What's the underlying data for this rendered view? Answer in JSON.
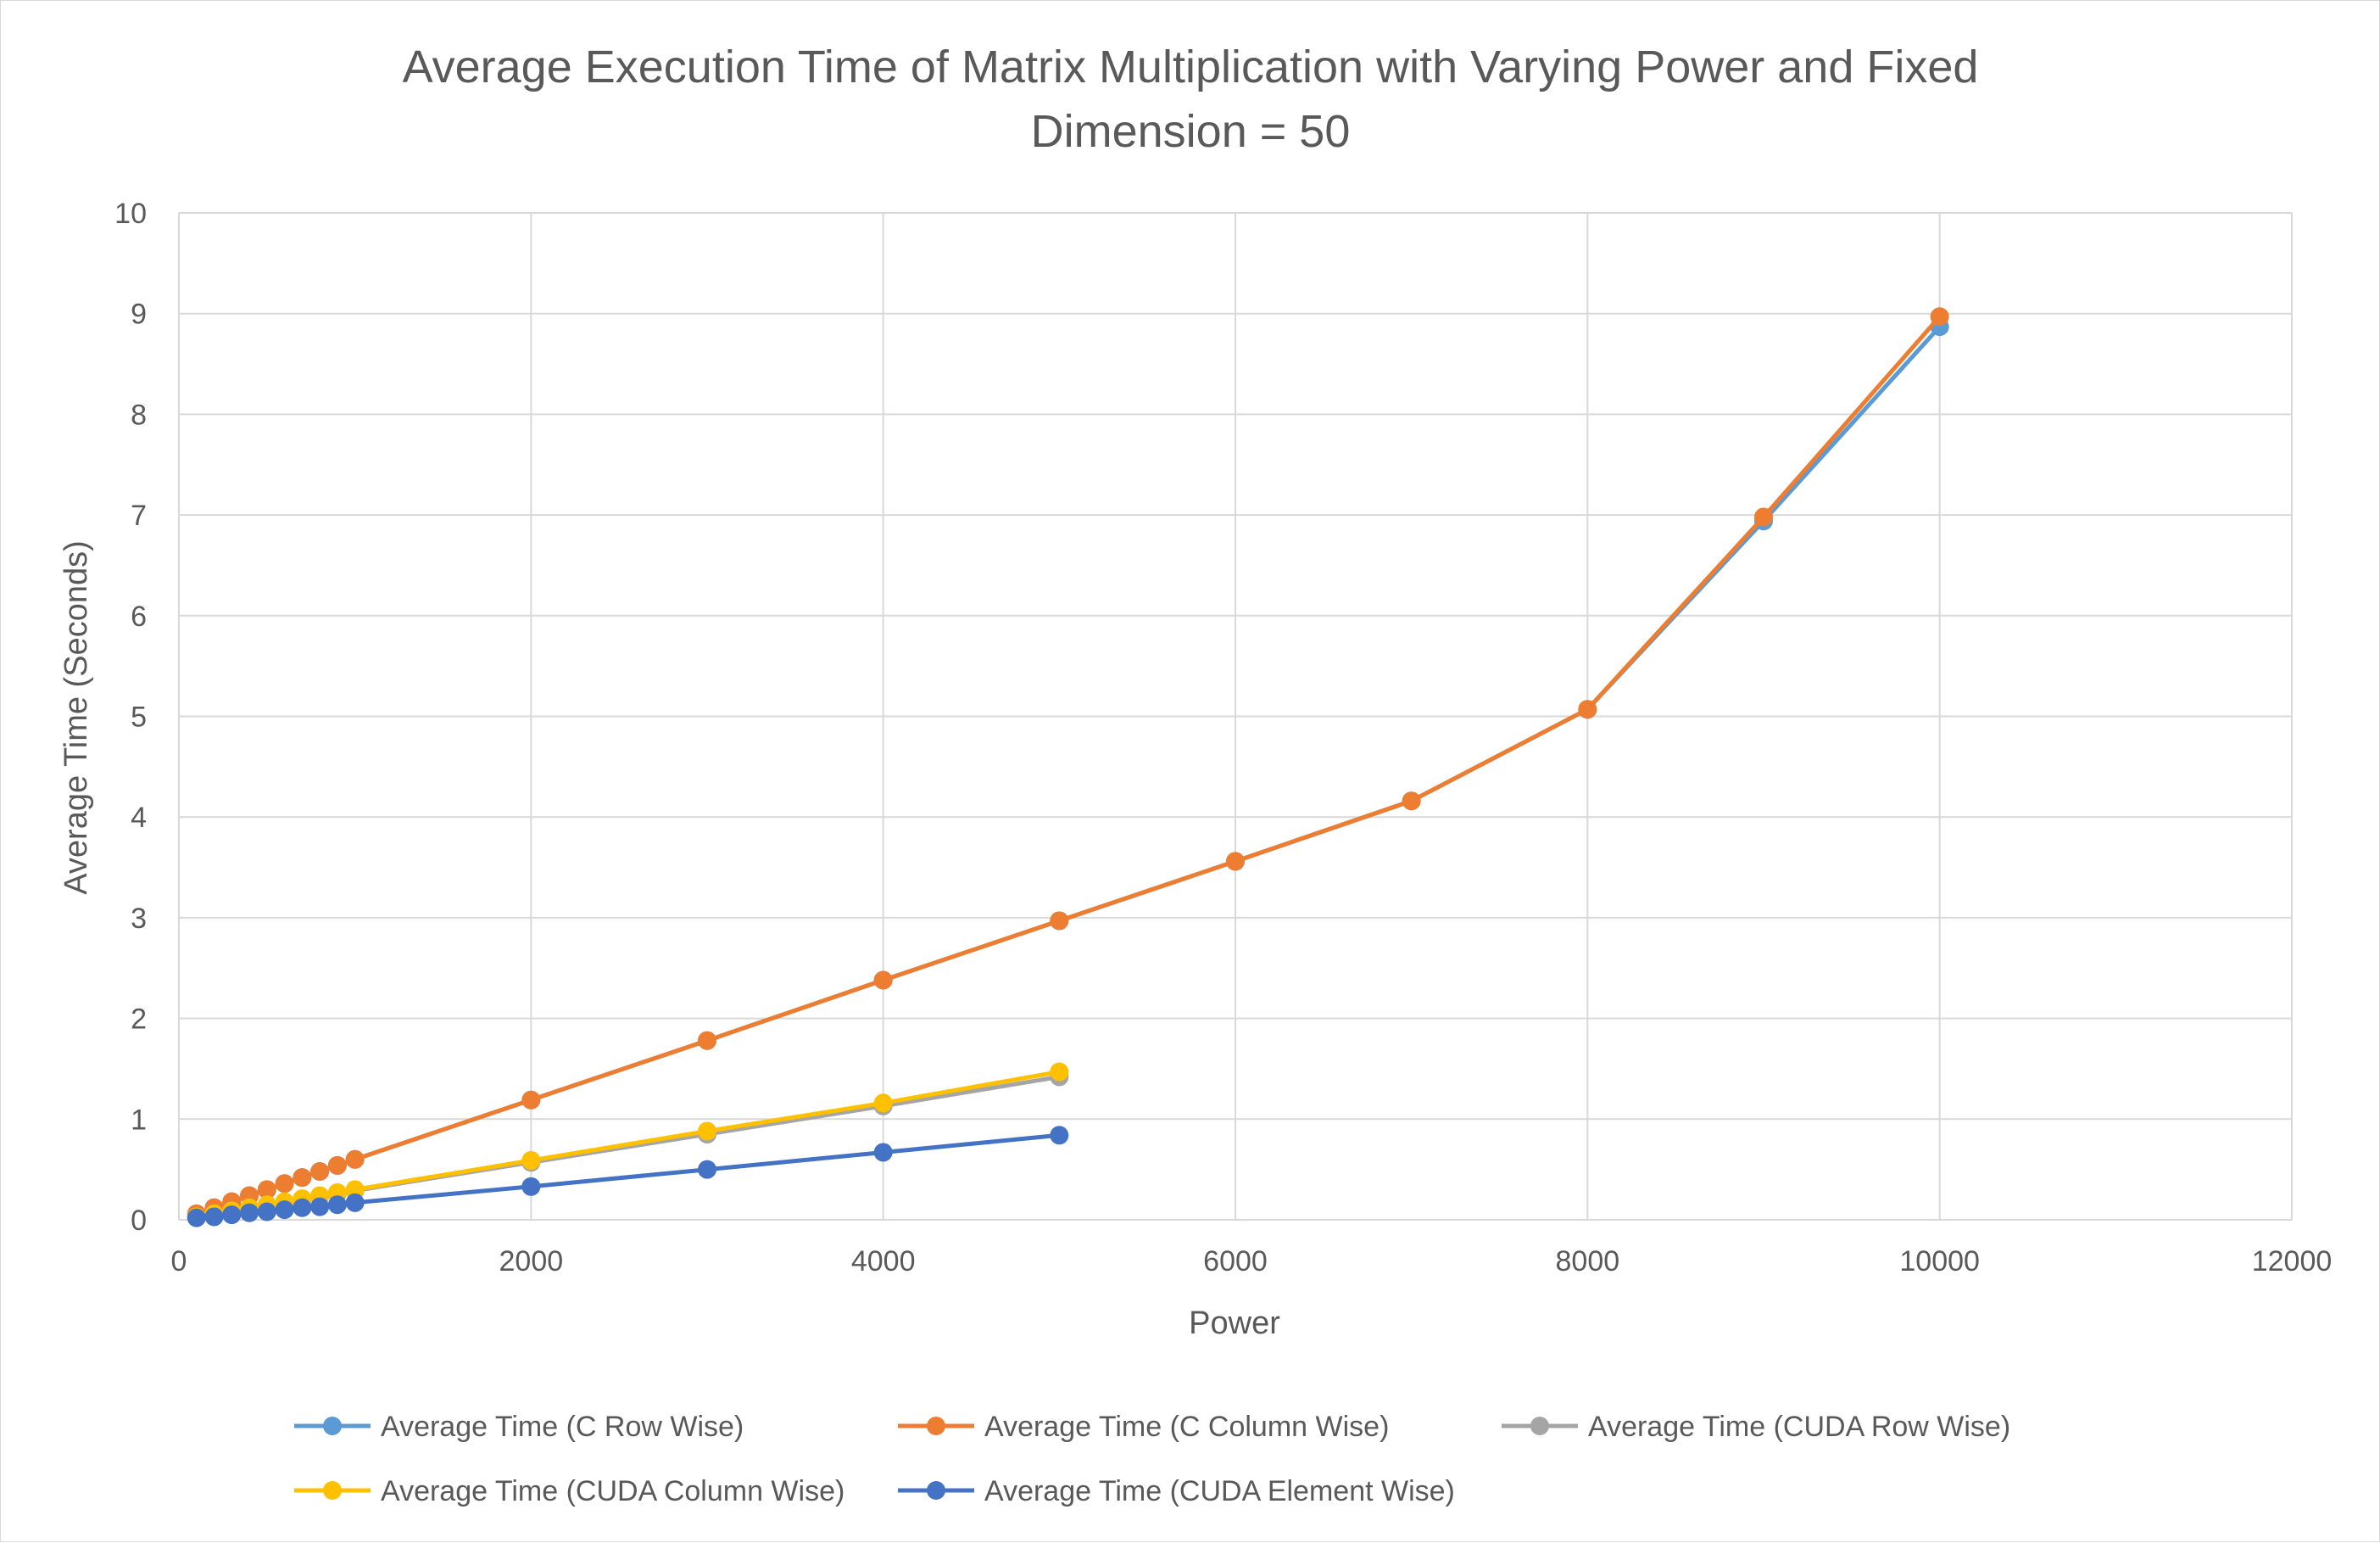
{
  "chart_data": {
    "type": "line",
    "title_lines": [
      "Average Execution Time of Matrix Multiplication with Varying Power and Fixed",
      "Dimension = 50"
    ],
    "xlabel": "Power",
    "ylabel": "Average Time (Seconds)",
    "xlim": [
      0,
      12000
    ],
    "ylim": [
      0,
      10
    ],
    "xticks": [
      0,
      2000,
      4000,
      6000,
      8000,
      10000,
      12000
    ],
    "yticks": [
      0,
      1,
      2,
      3,
      4,
      5,
      6,
      7,
      8,
      9,
      10
    ],
    "grid": true,
    "legend_position": "bottom",
    "series": [
      {
        "name": "Average Time (C Row Wise)",
        "color": "#5B9BD5",
        "x": [
          100,
          200,
          300,
          400,
          500,
          600,
          700,
          800,
          900,
          1000,
          2000,
          3000,
          4000,
          5000,
          6000,
          7000,
          8000,
          9000,
          10000
        ],
        "y": [
          0.06,
          0.12,
          0.18,
          0.24,
          0.3,
          0.36,
          0.42,
          0.48,
          0.54,
          0.6,
          1.19,
          1.78,
          2.38,
          2.97,
          3.56,
          4.16,
          5.07,
          6.94,
          8.87
        ]
      },
      {
        "name": "Average Time (C Column Wise)",
        "color": "#ED7D31",
        "x": [
          100,
          200,
          300,
          400,
          500,
          600,
          700,
          800,
          900,
          1000,
          2000,
          3000,
          4000,
          5000,
          6000,
          7000,
          8000,
          9000,
          10000
        ],
        "y": [
          0.06,
          0.12,
          0.18,
          0.24,
          0.3,
          0.36,
          0.42,
          0.48,
          0.54,
          0.6,
          1.19,
          1.78,
          2.38,
          2.97,
          3.56,
          4.16,
          5.07,
          6.98,
          8.97
        ]
      },
      {
        "name": "Average Time (CUDA Row Wise)",
        "color": "#A5A5A5",
        "x": [
          100,
          200,
          300,
          400,
          500,
          600,
          700,
          800,
          900,
          1000,
          2000,
          3000,
          4000,
          5000
        ],
        "y": [
          0.03,
          0.06,
          0.09,
          0.12,
          0.14,
          0.17,
          0.2,
          0.23,
          0.26,
          0.29,
          0.57,
          0.85,
          1.13,
          1.42
        ]
      },
      {
        "name": "Average Time (CUDA Column Wise)",
        "color": "#FFC000",
        "x": [
          100,
          200,
          300,
          400,
          500,
          600,
          700,
          800,
          900,
          1000,
          2000,
          3000,
          4000,
          5000
        ],
        "y": [
          0.03,
          0.06,
          0.09,
          0.12,
          0.15,
          0.18,
          0.21,
          0.24,
          0.27,
          0.3,
          0.59,
          0.88,
          1.16,
          1.47
        ]
      },
      {
        "name": "Average Time (CUDA Element Wise)",
        "color": "#4472C4",
        "x": [
          100,
          200,
          300,
          400,
          500,
          600,
          700,
          800,
          900,
          1000,
          2000,
          3000,
          4000,
          5000
        ],
        "y": [
          0.02,
          0.03,
          0.05,
          0.07,
          0.08,
          0.1,
          0.12,
          0.13,
          0.15,
          0.17,
          0.33,
          0.5,
          0.67,
          0.84
        ]
      }
    ]
  }
}
